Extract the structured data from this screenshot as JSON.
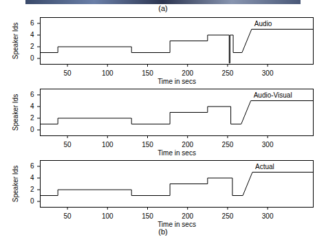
{
  "captions": [
    "(a)",
    "(b)"
  ],
  "chart_data": [
    {
      "type": "line",
      "xlabel": "Time in secs",
      "ylabel": "Speaker Ids",
      "xlim": [
        16,
        357
      ],
      "ylim": [
        -1,
        7
      ],
      "xticks": [
        50,
        100,
        150,
        200,
        250,
        300
      ],
      "yticks": [
        0,
        2,
        4,
        6
      ],
      "series": [
        {
          "name": "Audio",
          "color": "#000000",
          "x": [
            16,
            38,
            38,
            130,
            130,
            178,
            178,
            225,
            225,
            252,
            252,
            253,
            253,
            257,
            257,
            268,
            280,
            357
          ],
          "values": [
            1,
            1,
            2,
            2,
            1,
            1,
            3,
            3,
            4,
            4,
            -0.8,
            -0.8,
            4,
            4,
            1,
            1,
            5,
            5
          ]
        }
      ]
    },
    {
      "type": "line",
      "xlabel": "Time in secs",
      "ylabel": "Speaker Ids",
      "xlim": [
        16,
        357
      ],
      "ylim": [
        -1,
        7
      ],
      "xticks": [
        50,
        100,
        150,
        200,
        250,
        300
      ],
      "yticks": [
        0,
        2,
        4,
        6
      ],
      "series": [
        {
          "name": "Audio-Visual",
          "color": "#000000",
          "x": [
            16,
            38,
            38,
            130,
            130,
            178,
            178,
            225,
            225,
            254,
            254,
            267,
            279,
            357
          ],
          "values": [
            1,
            1,
            2,
            2,
            1,
            1,
            3,
            3,
            4,
            4,
            1,
            1,
            5,
            5
          ]
        }
      ]
    },
    {
      "type": "line",
      "xlabel": "Time in secs",
      "ylabel": "Speaker Ids",
      "xlim": [
        16,
        357
      ],
      "ylim": [
        -1,
        7
      ],
      "xticks": [
        50,
        100,
        150,
        200,
        250,
        300
      ],
      "yticks": [
        0,
        2,
        4,
        6
      ],
      "series": [
        {
          "name": "Actual",
          "color": "#000000",
          "x": [
            16,
            38,
            38,
            130,
            130,
            178,
            178,
            225,
            225,
            256,
            256,
            269,
            281,
            357
          ],
          "values": [
            1,
            1,
            2,
            2,
            1,
            1,
            3,
            3,
            4,
            4,
            1,
            1,
            5,
            5
          ]
        }
      ]
    }
  ]
}
